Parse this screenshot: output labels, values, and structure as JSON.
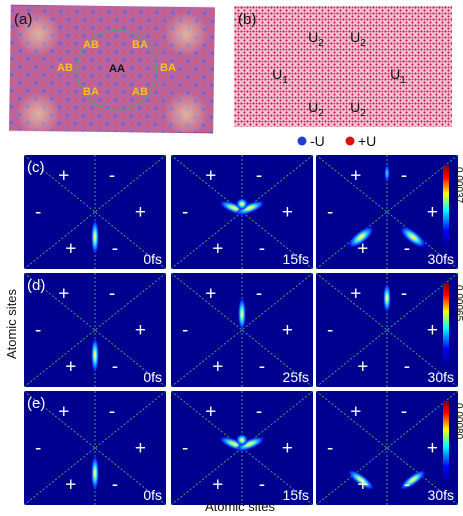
{
  "panel_a": {
    "label": "(a)",
    "regions": [
      {
        "text": "AB",
        "color": "#f5c518"
      },
      {
        "text": "BA",
        "color": "#f5c518"
      },
      {
        "text": "AB",
        "color": "#f5c518"
      },
      {
        "text": "AA",
        "color": "#111111"
      },
      {
        "text": "BA",
        "color": "#f5c518"
      },
      {
        "text": "BA",
        "color": "#f5c518"
      },
      {
        "text": "AB",
        "color": "#f5c518"
      }
    ]
  },
  "panel_b": {
    "label": "(b)",
    "labels": [
      {
        "text": "U",
        "sub": "2"
      },
      {
        "text": "U",
        "sub": "2"
      },
      {
        "text": "U",
        "sub": "1"
      },
      {
        "text": "U",
        "sub": "1"
      },
      {
        "text": "U",
        "sub": "2"
      },
      {
        "text": "U",
        "sub": "2"
      }
    ]
  },
  "legend": [
    {
      "label": "-U",
      "color": "#1f3fd1"
    },
    {
      "label": "+U",
      "color": "#e01010"
    }
  ],
  "rows": [
    {
      "label": "(c)",
      "colorbar_max": "0.00037",
      "signs": {
        "top_left": "+",
        "top_right": "-",
        "left": "-",
        "right": "+",
        "bottom_left": "+",
        "bottom_right": "-"
      },
      "frames": [
        {
          "time": "0fs",
          "mode": "vertical-bottom"
        },
        {
          "time": "15fs",
          "mode": "arc-center"
        },
        {
          "time": "30fs",
          "mode": "split-diagonal-top"
        }
      ]
    },
    {
      "label": "(d)",
      "colorbar_max": "0.00065",
      "signs": {
        "top_left": "+",
        "top_right": "-",
        "left": "-",
        "right": "+",
        "bottom_left": "+",
        "bottom_right": "-"
      },
      "frames": [
        {
          "time": "0fs",
          "mode": "vertical-bottom"
        },
        {
          "time": "25fs",
          "mode": "vertical-center"
        },
        {
          "time": "30fs",
          "mode": "vertical-top"
        }
      ]
    },
    {
      "label": "(e)",
      "colorbar_max": "0.00080",
      "signs": {
        "top_left": "+",
        "top_right": "-",
        "left": "-",
        "right": "+",
        "bottom_left": "+",
        "bottom_right": "-"
      },
      "frames": [
        {
          "time": "0fs",
          "mode": "vertical-bottom"
        },
        {
          "time": "15fs",
          "mode": "arc-center"
        },
        {
          "time": "30fs",
          "mode": "split-diagonal-bottom"
        }
      ]
    }
  ],
  "axes": {
    "xlabel": "Atomic sites",
    "ylabel": "Atomic sites"
  },
  "colormap": [
    "#00008f",
    "#0000ff",
    "#00ffff",
    "#ffff00",
    "#ff0000",
    "#800000"
  ]
}
